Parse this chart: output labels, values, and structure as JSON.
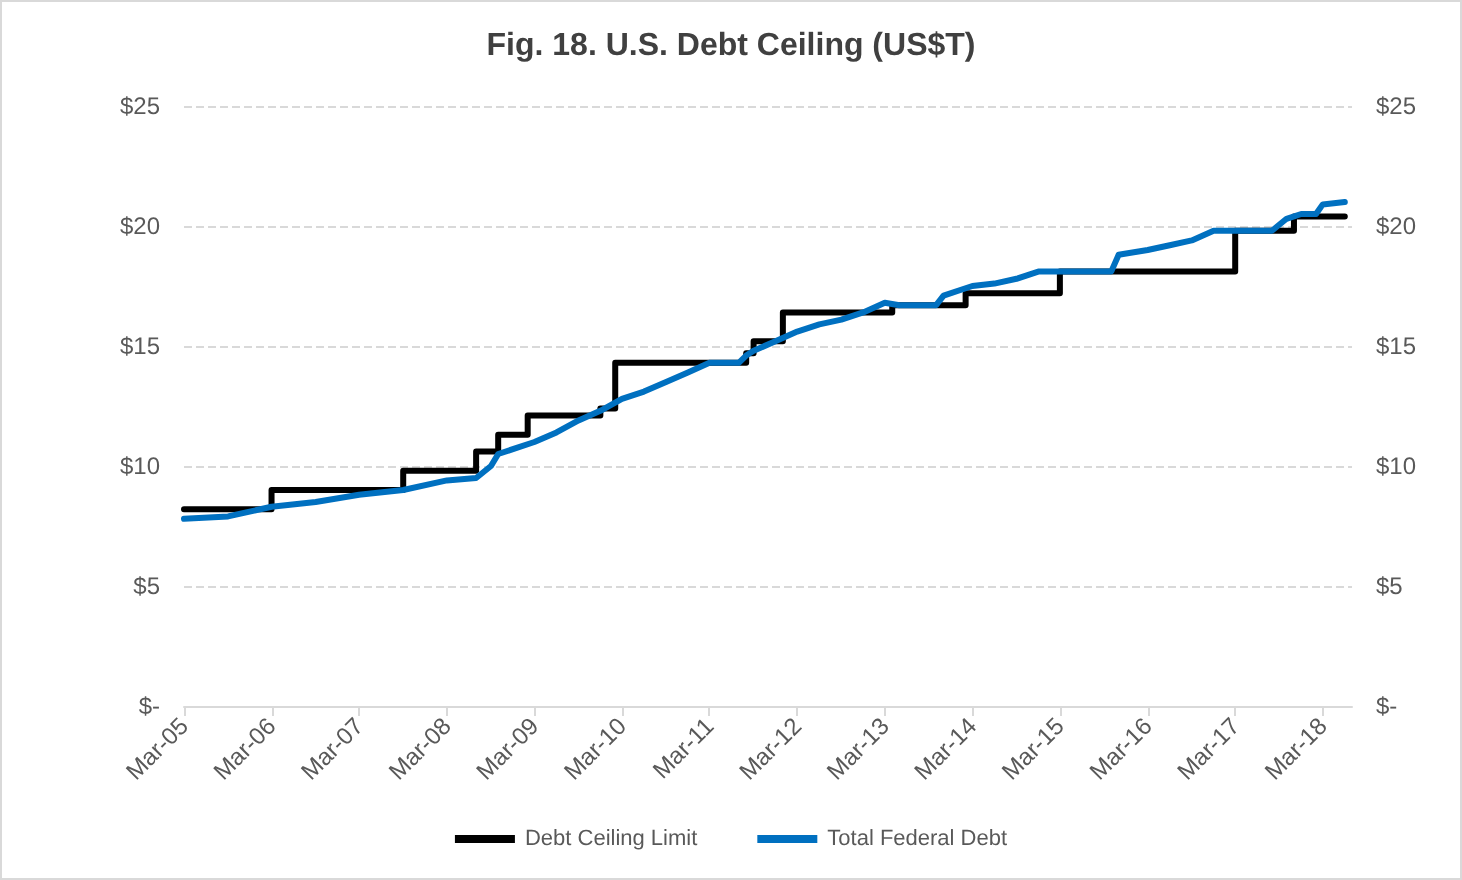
{
  "chart_data": {
    "type": "line",
    "title": "Fig. 18. U.S. Debt Ceiling (US$T)",
    "series": [
      {
        "name": "Debt Ceiling Limit",
        "type": "step",
        "color": "#000000",
        "x": [
          "2005-03",
          "2006-03",
          "2007-09",
          "2008-07",
          "2008-10",
          "2009-02",
          "2009-12",
          "2010-02",
          "2011-08",
          "2011-09",
          "2012-01",
          "2013-04",
          "2014-02",
          "2015-03",
          "2017-03",
          "2017-11",
          "2018-06"
        ],
        "values": [
          8.2,
          9.0,
          9.8,
          10.6,
          11.3,
          12.1,
          12.4,
          14.3,
          14.7,
          15.2,
          16.4,
          16.7,
          17.2,
          18.1,
          19.8,
          20.4,
          20.4
        ]
      },
      {
        "name": "Total Federal Debt",
        "color": "#0070c0",
        "x": [
          "2005-03",
          "2005-09",
          "2006-03",
          "2006-09",
          "2007-03",
          "2007-09",
          "2008-03",
          "2008-07",
          "2008-09",
          "2008-10",
          "2009-03",
          "2009-06",
          "2009-09",
          "2009-12",
          "2010-03",
          "2010-06",
          "2010-09",
          "2010-12",
          "2011-03",
          "2011-07",
          "2011-08",
          "2011-09",
          "2011-12",
          "2012-03",
          "2012-06",
          "2012-09",
          "2012-12",
          "2013-03",
          "2013-05",
          "2013-10",
          "2013-11",
          "2014-03",
          "2014-06",
          "2014-09",
          "2014-12",
          "2015-03",
          "2015-10",
          "2015-11",
          "2016-03",
          "2016-06",
          "2016-09",
          "2016-12",
          "2017-03",
          "2017-08",
          "2017-10",
          "2017-12",
          "2018-02",
          "2018-03",
          "2018-06"
        ],
        "values": [
          7.8,
          7.9,
          8.3,
          8.5,
          8.8,
          9.0,
          9.4,
          9.5,
          10.0,
          10.5,
          11.0,
          11.4,
          11.9,
          12.3,
          12.8,
          13.1,
          13.5,
          13.9,
          14.3,
          14.3,
          14.6,
          14.8,
          15.2,
          15.6,
          15.9,
          16.1,
          16.4,
          16.8,
          16.7,
          16.7,
          17.1,
          17.5,
          17.6,
          17.8,
          18.1,
          18.1,
          18.1,
          18.8,
          19.0,
          19.2,
          19.4,
          19.8,
          19.8,
          19.8,
          20.3,
          20.5,
          20.5,
          20.9,
          21.0
        ]
      }
    ],
    "xlim": [
      "2005-03",
      "2018-07"
    ],
    "xticks": [
      {
        "value": "2005-03",
        "label": "Mar-05"
      },
      {
        "value": "2006-03",
        "label": "Mar-06"
      },
      {
        "value": "2007-03",
        "label": "Mar-07"
      },
      {
        "value": "2008-03",
        "label": "Mar-08"
      },
      {
        "value": "2009-03",
        "label": "Mar-09"
      },
      {
        "value": "2010-03",
        "label": "Mar-10"
      },
      {
        "value": "2011-03",
        "label": "Mar-11"
      },
      {
        "value": "2012-03",
        "label": "Mar-12"
      },
      {
        "value": "2013-03",
        "label": "Mar-13"
      },
      {
        "value": "2014-03",
        "label": "Mar-14"
      },
      {
        "value": "2015-03",
        "label": "Mar-15"
      },
      {
        "value": "2016-03",
        "label": "Mar-16"
      },
      {
        "value": "2017-03",
        "label": "Mar-17"
      },
      {
        "value": "2018-03",
        "label": "Mar-18"
      }
    ],
    "ylim": [
      0,
      25
    ],
    "yticks": [
      {
        "value": 0,
        "label": "$-"
      },
      {
        "value": 5,
        "label": "$5"
      },
      {
        "value": 10,
        "label": "$10"
      },
      {
        "value": 15,
        "label": "$15"
      },
      {
        "value": 20,
        "label": "$20"
      },
      {
        "value": 25,
        "label": "$25"
      }
    ],
    "y2lim": [
      0,
      25
    ],
    "y2ticks": [
      {
        "value": 0,
        "label": "$-"
      },
      {
        "value": 5,
        "label": "$5"
      },
      {
        "value": 10,
        "label": "$10"
      },
      {
        "value": 15,
        "label": "$15"
      },
      {
        "value": 20,
        "label": "$20"
      },
      {
        "value": 25,
        "label": "$25"
      }
    ],
    "grid": "y",
    "legend": "bottom",
    "marker": "none",
    "line_style": "solid"
  }
}
